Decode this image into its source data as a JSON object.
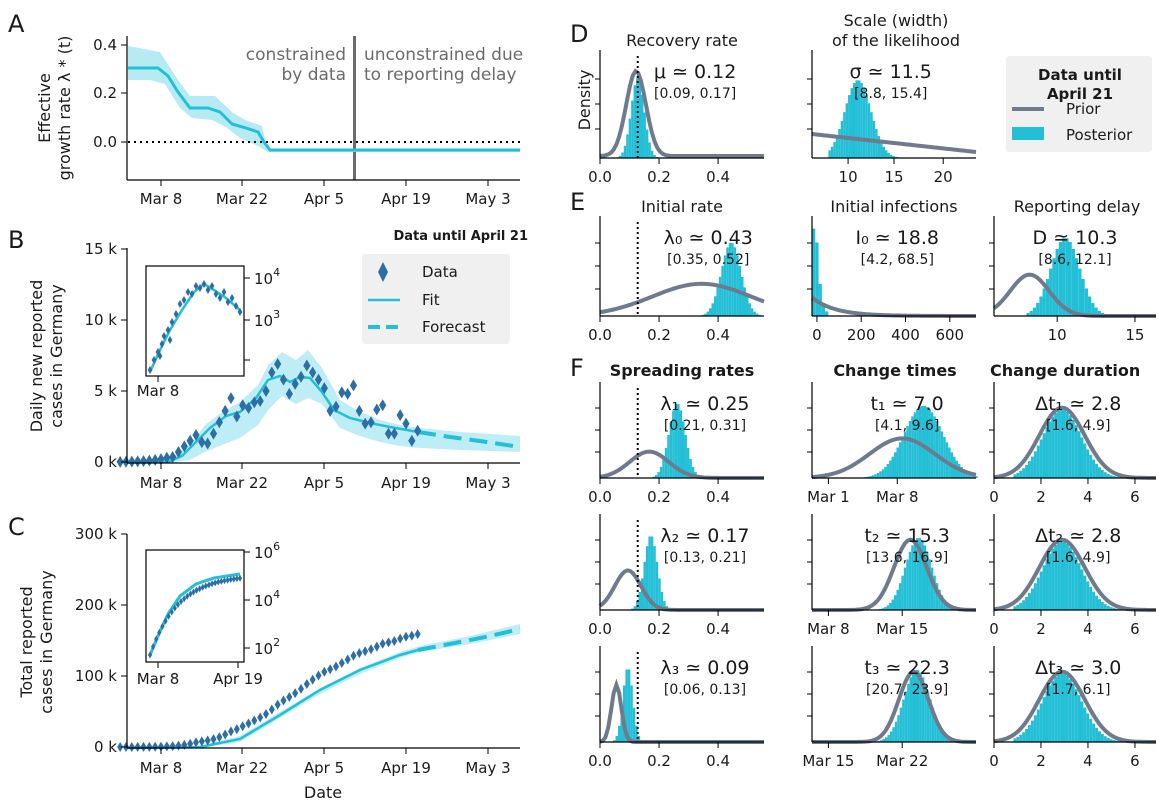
{
  "colors": {
    "fit": "#22bfd6",
    "fit_band": "#aee9f3",
    "data": "#2c6ea6",
    "prior": "#6f7b8c",
    "posterior": "#22bfd6",
    "grey_text": "#6b6b6b"
  },
  "panel_letters": {
    "A": "A",
    "B": "B",
    "C": "C",
    "D": "D",
    "E": "E",
    "F": "F"
  },
  "x_date_ticks": [
    "Mar 8",
    "Mar 22",
    "Apr 5",
    "Apr 19",
    "May 3"
  ],
  "date_axis_label": "Date",
  "panel_A": {
    "ylabel_line1": "Effective",
    "ylabel_line2": "growth rate λ * (t)",
    "y_ticks": [
      "0.4",
      "0.2",
      "0.0"
    ],
    "ann_left_line1": "constrained",
    "ann_left_line2": "by data",
    "ann_right_line1": "unconstrained due",
    "ann_right_line2": "to reporting delay"
  },
  "panel_B": {
    "ylabel_line1": "Daily new reported",
    "ylabel_line2": "cases in Germany",
    "y_ticks": [
      "15 k",
      "10 k",
      "5 k",
      "0 k"
    ],
    "header": "Data until April 21",
    "legend": {
      "data": "Data",
      "fit": "Fit",
      "forecast": "Forecast"
    },
    "inset_y_ticks": [
      "10",
      "10"
    ],
    "inset_y_exp": [
      "4",
      "3"
    ],
    "inset_x_tick": "Mar 8"
  },
  "panel_C": {
    "ylabel_line1": "Total reported",
    "ylabel_line2": "cases in Germany",
    "y_ticks": [
      "300 k",
      "200 k",
      "100 k",
      "0 k"
    ],
    "inset_y_ticks": [
      "10",
      "10",
      "10"
    ],
    "inset_y_exp": [
      "6",
      "4",
      "2"
    ],
    "inset_x_ticks": [
      "Mar 8",
      "Apr 19"
    ]
  },
  "legend_right": {
    "title_line1": "Data until",
    "title_line2": "April 21",
    "prior": "Prior",
    "posterior": "Posterior"
  },
  "panel_D": {
    "density_label": "Density",
    "recovery": {
      "title": "Recovery rate",
      "est": "μ ≃ 0.12",
      "ci": "[0.09, 0.17]",
      "x_ticks": [
        "0.0",
        "0.2",
        "0.4"
      ]
    },
    "scale": {
      "title_line1": "Scale (width)",
      "title_line2": "of the likelihood",
      "est": "σ ≃ 11.5",
      "ci": "[8.8, 15.4]",
      "x_ticks": [
        "10",
        "15",
        "20"
      ]
    }
  },
  "panel_E": {
    "initial_rate": {
      "title": "Initial rate",
      "est": "λ₀ ≃ 0.43",
      "ci": "[0.35, 0.52]",
      "x_ticks": [
        "0.0",
        "0.2",
        "0.4"
      ]
    },
    "initial_infections": {
      "title": "Initial infections",
      "est": "I₀ ≃ 18.8",
      "ci": "[4.2, 68.5]",
      "x_ticks": [
        "0",
        "200",
        "400",
        "600"
      ]
    },
    "reporting_delay": {
      "title": "Reporting delay",
      "est": "D ≃ 10.3",
      "ci": "[8.6, 12.1]",
      "x_ticks": [
        "10",
        "15"
      ]
    }
  },
  "panel_F": {
    "col_titles": [
      "Spreading rates",
      "Change times",
      "Change duration"
    ],
    "rows": [
      {
        "rate": {
          "est": "λ₁ ≃ 0.25",
          "ci": "[0.21, 0.31]",
          "x_ticks": [
            "0.0",
            "0.2",
            "0.4"
          ]
        },
        "time": {
          "est": "t₁ ≃ 7.0",
          "ci": "[4.1, 9.6]",
          "x_ticks": [
            "Mar 1",
            "Mar 8"
          ]
        },
        "dur": {
          "est": "Δt₁ ≃ 2.8",
          "ci": "[1.6, 4.9]",
          "x_ticks": [
            "0",
            "2",
            "4",
            "6"
          ]
        }
      },
      {
        "rate": {
          "est": "λ₂ ≃ 0.17",
          "ci": "[0.13, 0.21]",
          "x_ticks": [
            "0.0",
            "0.2",
            "0.4"
          ]
        },
        "time": {
          "est": "t₂ ≃ 15.3",
          "ci": "[13.6, 16.9]",
          "x_ticks": [
            "Mar 8",
            "Mar 15"
          ]
        },
        "dur": {
          "est": "Δt₂ ≃ 2.8",
          "ci": "[1.6, 4.9]",
          "x_ticks": [
            "0",
            "2",
            "4",
            "6"
          ]
        }
      },
      {
        "rate": {
          "est": "λ₃ ≃ 0.09",
          "ci": "[0.06, 0.13]",
          "x_ticks": [
            "0.0",
            "0.2",
            "0.4"
          ]
        },
        "time": {
          "est": "t₃ ≃ 22.3",
          "ci": "[20.7, 23.9]",
          "x_ticks": [
            "Mar 15",
            "Mar 22"
          ]
        },
        "dur": {
          "est": "Δt₃ ≃ 3.0",
          "ci": "[1.7, 6.1]",
          "x_ticks": [
            "0",
            "2",
            "4",
            "6"
          ]
        }
      }
    ]
  },
  "chart_data": [
    {
      "type": "line",
      "panel": "A",
      "x": [
        "2020-03-01",
        "2020-03-04",
        "2020-03-06",
        "2020-03-08",
        "2020-03-10",
        "2020-03-12",
        "2020-03-15",
        "2020-03-18",
        "2020-03-20",
        "2020-03-22",
        "2020-03-24",
        "2020-04-05",
        "2020-04-19",
        "2020-05-03",
        "2020-05-09"
      ],
      "series": [
        {
          "name": "Effective growth rate",
          "values": [
            0.31,
            0.31,
            0.3,
            0.27,
            0.18,
            0.13,
            0.13,
            0.1,
            0.05,
            0.03,
            -0.03,
            -0.03,
            -0.03,
            -0.03,
            -0.03
          ]
        }
      ],
      "ylim": [
        -0.15,
        0.45
      ],
      "reference_line_y": 0.0,
      "data_cutoff": "2020-04-11"
    },
    {
      "type": "scatter",
      "panel": "B",
      "x": [
        "2020-03-01",
        "2020-03-02",
        "2020-03-03",
        "2020-03-04",
        "2020-03-05",
        "2020-03-06",
        "2020-03-07",
        "2020-03-08",
        "2020-03-09",
        "2020-03-10",
        "2020-03-11",
        "2020-03-12",
        "2020-03-13",
        "2020-03-14",
        "2020-03-15",
        "2020-03-16",
        "2020-03-17",
        "2020-03-18",
        "2020-03-19",
        "2020-03-20",
        "2020-03-21",
        "2020-03-22",
        "2020-03-23",
        "2020-03-24",
        "2020-03-25",
        "2020-03-26",
        "2020-03-27",
        "2020-03-28",
        "2020-03-29",
        "2020-03-30",
        "2020-03-31",
        "2020-04-01",
        "2020-04-02",
        "2020-04-03",
        "2020-04-04",
        "2020-04-05",
        "2020-04-06",
        "2020-04-07",
        "2020-04-08",
        "2020-04-09",
        "2020-04-10",
        "2020-04-11",
        "2020-04-12",
        "2020-04-13",
        "2020-04-14",
        "2020-04-15",
        "2020-04-16",
        "2020-04-17",
        "2020-04-18",
        "2020-04-19",
        "2020-04-20",
        "2020-04-21"
      ],
      "series": [
        {
          "name": "Data",
          "values": [
            10,
            20,
            30,
            40,
            60,
            100,
            150,
            200,
            300,
            350,
            700,
            1100,
            1500,
            1900,
            1400,
            1300,
            2000,
            2800,
            3600,
            4500,
            3200,
            4000,
            3800,
            4200,
            4300,
            5000,
            6300,
            6900,
            5800,
            4800,
            5500,
            6000,
            6800,
            6300,
            5800,
            5200,
            3600,
            3900,
            4900,
            4800,
            5400,
            3600,
            2700,
            2800,
            3700,
            4000,
            2000,
            2000,
            3300,
            2700,
            1500,
            2200
          ]
        },
        {
          "name": "Fit",
          "values": [
            5,
            8,
            12,
            20,
            35,
            60,
            100,
            160,
            250,
            380,
            550,
            800,
            1100,
            1500,
            1900,
            2300,
            2700,
            3100,
            3400,
            3600,
            3700,
            3800,
            4100,
            4600,
            5200,
            5700,
            5900,
            5800,
            5600,
            5500,
            5600,
            5800,
            5900,
            5700,
            5200,
            4500,
            3900,
            3500,
            3200,
            3000,
            2900,
            2800,
            2700,
            2650,
            2600,
            2500,
            2450,
            2400,
            2300,
            2250,
            2200,
            2100
          ]
        },
        {
          "name": "Forecast",
          "values": [
            2100,
            1900,
            1700,
            1500,
            1300,
            1150
          ]
        }
      ],
      "forecast_x": [
        "2020-04-21",
        "2020-04-25",
        "2020-04-29",
        "2020-05-03",
        "2020-05-06",
        "2020-05-09"
      ],
      "ylim": [
        0,
        15000
      ]
    },
    {
      "type": "scatter",
      "panel": "C",
      "x": [
        "2020-03-01",
        "2020-03-08",
        "2020-03-15",
        "2020-03-22",
        "2020-03-29",
        "2020-04-05",
        "2020-04-12",
        "2020-04-19",
        "2020-04-21"
      ],
      "series": [
        {
          "name": "Data",
          "values": [
            100,
            900,
            6000,
            25000,
            60000,
            95000,
            125000,
            142000,
            147000
          ]
        },
        {
          "name": "Forecast",
          "values": [
            147000,
            152000,
            158000,
            164000,
            170000,
            176000
          ]
        }
      ],
      "forecast_x": [
        "2020-04-21",
        "2020-04-25",
        "2020-04-29",
        "2020-05-03",
        "2020-05-06",
        "2020-05-09"
      ],
      "ylim": [
        0,
        300000
      ]
    }
  ]
}
